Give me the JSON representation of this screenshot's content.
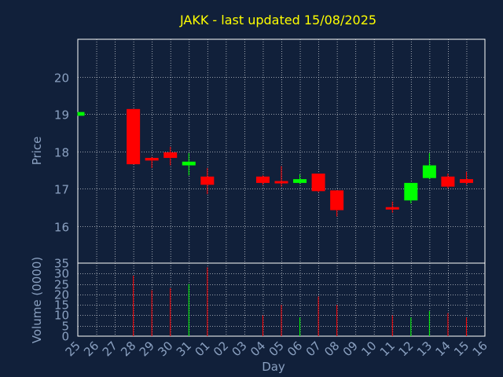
{
  "chart_data": {
    "type": "candlestick",
    "title": "JAKK - last updated 15/08/2025",
    "xlabel": "Day",
    "price_panel": {
      "ylabel": "Price",
      "ylim": [
        15,
        21
      ],
      "yticks": [
        16,
        17,
        18,
        19,
        20
      ]
    },
    "volume_panel": {
      "ylabel": "Volume (0000)",
      "ylim": [
        0,
        35
      ],
      "yticks": [
        0,
        5,
        10,
        15,
        20,
        25,
        30,
        35
      ]
    },
    "grid": true,
    "colors": {
      "background": "#11203a",
      "plot_background": "#11203a",
      "up": "#00ff00",
      "down": "#ff0000",
      "title": "#ffff00",
      "axis_text": "#8aa0c0",
      "grid": "#ffffff"
    },
    "days": [
      "25",
      "26",
      "27",
      "28",
      "29",
      "30",
      "31",
      "01",
      "02",
      "03",
      "04",
      "05",
      "06",
      "07",
      "08",
      "09",
      "10",
      "11",
      "12",
      "13",
      "14",
      "15",
      "16"
    ],
    "candles": [
      {
        "day": "25",
        "open": 18.95,
        "close": 19.05,
        "high": 19.05,
        "low": 18.95,
        "volume": 0
      },
      {
        "day": "28",
        "open": 19.13,
        "close": 17.65,
        "high": 19.13,
        "low": 17.65,
        "volume": 29
      },
      {
        "day": "29",
        "open": 17.82,
        "close": 17.75,
        "high": 17.85,
        "low": 17.55,
        "volume": 22
      },
      {
        "day": "30",
        "open": 17.97,
        "close": 17.82,
        "high": 18.12,
        "low": 17.62,
        "volume": 23
      },
      {
        "day": "31",
        "open": 17.62,
        "close": 17.72,
        "high": 17.95,
        "low": 17.35,
        "volume": 25
      },
      {
        "day": "01",
        "open": 17.32,
        "close": 17.1,
        "high": 17.55,
        "low": 16.85,
        "volume": 33
      },
      {
        "day": "04",
        "open": 17.32,
        "close": 17.15,
        "high": 17.35,
        "low": 17.1,
        "volume": 10
      },
      {
        "day": "05",
        "open": 17.2,
        "close": 17.15,
        "high": 17.6,
        "low": 17.05,
        "volume": 15
      },
      {
        "day": "06",
        "open": 17.15,
        "close": 17.25,
        "high": 17.38,
        "low": 17.12,
        "volume": 9
      },
      {
        "day": "07",
        "open": 17.4,
        "close": 16.93,
        "high": 17.4,
        "low": 16.9,
        "volume": 19
      },
      {
        "day": "08",
        "open": 16.95,
        "close": 16.42,
        "high": 16.95,
        "low": 16.25,
        "volume": 15
      },
      {
        "day": "11",
        "open": 16.5,
        "close": 16.45,
        "high": 16.65,
        "low": 16.35,
        "volume": 10
      },
      {
        "day": "12",
        "open": 16.68,
        "close": 17.15,
        "high": 17.15,
        "low": 16.6,
        "volume": 9
      },
      {
        "day": "13",
        "open": 17.28,
        "close": 17.62,
        "high": 17.95,
        "low": 17.25,
        "volume": 12
      },
      {
        "day": "14",
        "open": 17.32,
        "close": 17.05,
        "high": 17.4,
        "low": 17.0,
        "volume": 11
      },
      {
        "day": "15",
        "open": 17.25,
        "close": 17.15,
        "high": 17.45,
        "low": 17.1,
        "volume": 9
      }
    ]
  }
}
